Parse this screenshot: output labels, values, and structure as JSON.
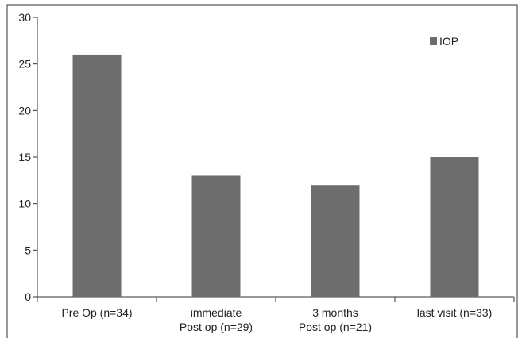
{
  "chart_data": {
    "type": "bar",
    "categories": [
      [
        "Pre Op (n=34)"
      ],
      [
        "immediate",
        "Post op (n=29)"
      ],
      [
        "3 months",
        "Post op (n=21)"
      ],
      [
        "last visit (n=33)"
      ]
    ],
    "series": [
      {
        "name": "IOP",
        "values": [
          26,
          13,
          12,
          15
        ]
      }
    ],
    "title": "",
    "xlabel": "",
    "ylabel": "",
    "ylim": [
      0,
      30
    ],
    "yticks": [
      0,
      5,
      10,
      15,
      20,
      25,
      30
    ],
    "grid": false,
    "legend_position": "top-right",
    "colors": {
      "bar": "#6d6d6d",
      "axis": "#333333",
      "frame": "#333333"
    }
  }
}
